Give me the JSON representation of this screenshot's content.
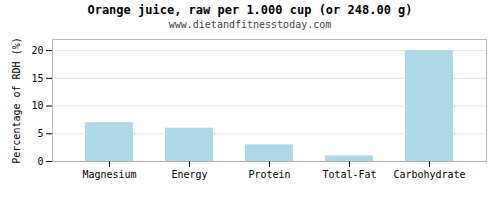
{
  "chart_data": {
    "type": "bar",
    "title": "Orange juice, raw per 1.000 cup (or 248.00 g)",
    "subtitle": "www.dietandfitnesstoday.com",
    "ylabel": "Percentage of RDH (%)",
    "categories": [
      "Magnesium",
      "Energy",
      "Protein",
      "Total-Fat",
      "Carbohydrate"
    ],
    "values": [
      7,
      6,
      3,
      1,
      20
    ],
    "color": "#add8e6",
    "ylim": [
      0,
      22
    ],
    "yticks": [
      0,
      5,
      10,
      15,
      20
    ],
    "grid": true
  }
}
